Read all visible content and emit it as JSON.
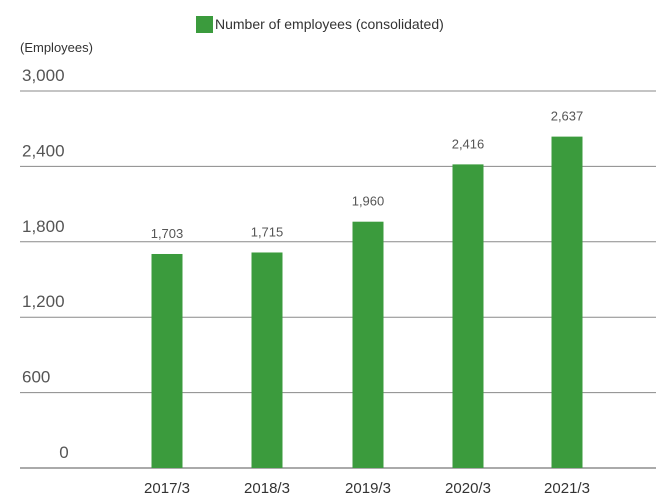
{
  "legend": {
    "label": "Number of employees (consolidated)"
  },
  "unit_label": "(Employees)",
  "colors": {
    "bar": "#3b9b3d",
    "grid": "#8a8a8a",
    "text": "#444444"
  },
  "chart_data": {
    "type": "bar",
    "categories": [
      "2017/3",
      "2018/3",
      "2019/3",
      "2020/3",
      "2021/3"
    ],
    "series": [
      {
        "name": "Number of employees (consolidated)",
        "values": [
          1703,
          1715,
          1960,
          2416,
          2637
        ]
      }
    ],
    "data_labels": [
      "1,703",
      "1,715",
      "1,960",
      "2,416",
      "2,637"
    ],
    "ylabel": "(Employees)",
    "ylim": [
      0,
      3000
    ],
    "yticks": [
      0,
      600,
      1200,
      1800,
      2400,
      3000
    ],
    "ytick_labels": [
      "0",
      "600",
      "1,200",
      "1,800",
      "2,400",
      "3,000"
    ],
    "grid": true,
    "legend_position": "top-center"
  }
}
